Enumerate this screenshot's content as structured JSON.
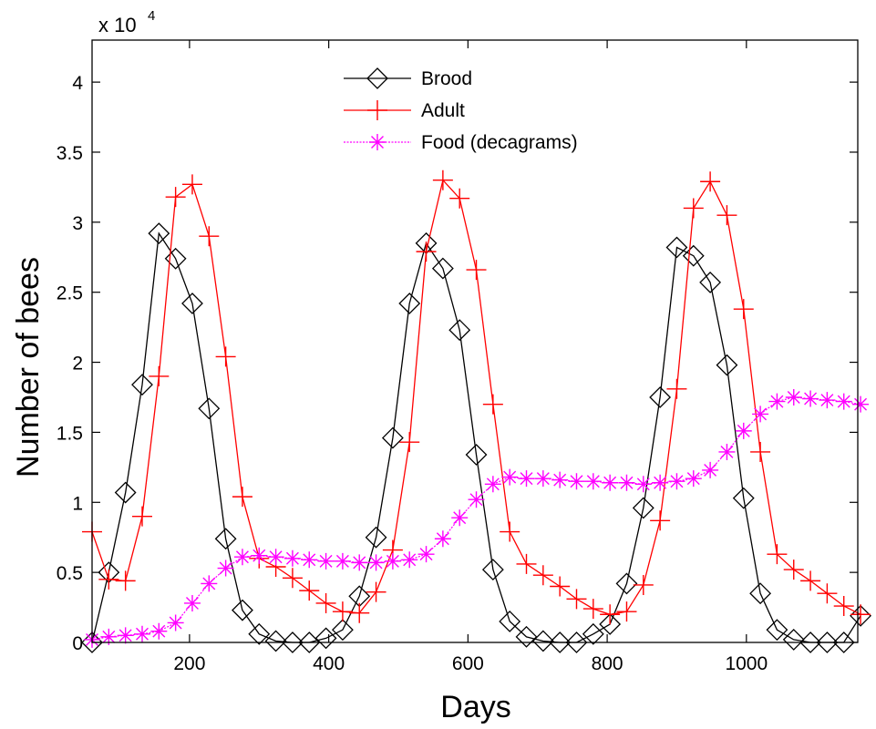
{
  "chart_data": {
    "type": "line",
    "xlabel": "Days",
    "ylabel": "Number of bees",
    "y_exponent": {
      "base": "x 10",
      "power": "4"
    },
    "xlim": [
      60,
      1160
    ],
    "ylim": [
      0,
      43000
    ],
    "x_ticks": [
      200,
      400,
      600,
      800,
      1000
    ],
    "x_tick_labels": [
      "200",
      "400",
      "600",
      "800",
      "1000"
    ],
    "y_ticks": [
      0,
      5000,
      10000,
      15000,
      20000,
      25000,
      30000,
      35000,
      40000
    ],
    "y_tick_labels": [
      "0",
      "0.5",
      "1",
      "1.5",
      "2",
      "2.5",
      "3",
      "3.5",
      "4"
    ],
    "grid": false,
    "legend_position": "top-center",
    "series": [
      {
        "name": "Brood",
        "color": "#000000",
        "marker": "diamond",
        "points": [
          [
            60,
            0
          ],
          [
            84,
            5000
          ],
          [
            108,
            10700
          ],
          [
            132,
            18400
          ],
          [
            156,
            29200
          ],
          [
            180,
            27400
          ],
          [
            204,
            24200
          ],
          [
            228,
            16700
          ],
          [
            252,
            7400
          ],
          [
            276,
            2300
          ],
          [
            300,
            600
          ],
          [
            324,
            100
          ],
          [
            348,
            0
          ],
          [
            372,
            0
          ],
          [
            396,
            300
          ],
          [
            420,
            900
          ],
          [
            444,
            3300
          ],
          [
            468,
            7500
          ],
          [
            492,
            14600
          ],
          [
            516,
            24200
          ],
          [
            540,
            28500
          ],
          [
            564,
            26700
          ],
          [
            588,
            22300
          ],
          [
            612,
            13400
          ],
          [
            636,
            5200
          ],
          [
            660,
            1500
          ],
          [
            684,
            400
          ],
          [
            708,
            100
          ],
          [
            732,
            0
          ],
          [
            756,
            0
          ],
          [
            780,
            600
          ],
          [
            804,
            1300
          ],
          [
            828,
            4200
          ],
          [
            852,
            9600
          ],
          [
            876,
            17500
          ],
          [
            900,
            28200
          ],
          [
            924,
            27600
          ],
          [
            948,
            25700
          ],
          [
            972,
            19800
          ],
          [
            996,
            10300
          ],
          [
            1020,
            3500
          ],
          [
            1044,
            900
          ],
          [
            1068,
            200
          ],
          [
            1092,
            0
          ],
          [
            1116,
            0
          ],
          [
            1140,
            0
          ],
          [
            1164,
            1900
          ]
        ]
      },
      {
        "name": "Adult",
        "color": "#ff0000",
        "marker": "plus",
        "points": [
          [
            60,
            7900
          ],
          [
            84,
            4500
          ],
          [
            108,
            4400
          ],
          [
            132,
            9000
          ],
          [
            156,
            19000
          ],
          [
            180,
            31800
          ],
          [
            204,
            32700
          ],
          [
            228,
            29000
          ],
          [
            252,
            20400
          ],
          [
            276,
            10400
          ],
          [
            300,
            6000
          ],
          [
            324,
            5400
          ],
          [
            348,
            4600
          ],
          [
            372,
            3700
          ],
          [
            396,
            2800
          ],
          [
            420,
            2200
          ],
          [
            444,
            2100
          ],
          [
            468,
            3600
          ],
          [
            492,
            6600
          ],
          [
            516,
            14300
          ],
          [
            540,
            27900
          ],
          [
            564,
            33000
          ],
          [
            588,
            31700
          ],
          [
            612,
            26600
          ],
          [
            636,
            17000
          ],
          [
            660,
            7900
          ],
          [
            684,
            5600
          ],
          [
            708,
            4800
          ],
          [
            732,
            4000
          ],
          [
            756,
            3100
          ],
          [
            780,
            2400
          ],
          [
            804,
            2000
          ],
          [
            828,
            2200
          ],
          [
            852,
            4100
          ],
          [
            876,
            8700
          ],
          [
            900,
            18100
          ],
          [
            924,
            31000
          ],
          [
            948,
            32900
          ],
          [
            972,
            30500
          ],
          [
            996,
            23800
          ],
          [
            1020,
            13600
          ],
          [
            1044,
            6300
          ],
          [
            1068,
            5200
          ],
          [
            1092,
            4400
          ],
          [
            1116,
            3500
          ],
          [
            1140,
            2600
          ],
          [
            1164,
            2000
          ]
        ]
      },
      {
        "name": "Food (decagrams)",
        "color": "#ff00ff",
        "marker": "asterisk",
        "dashed": true,
        "points": [
          [
            60,
            200
          ],
          [
            84,
            400
          ],
          [
            108,
            500
          ],
          [
            132,
            600
          ],
          [
            156,
            800
          ],
          [
            180,
            1400
          ],
          [
            204,
            2800
          ],
          [
            228,
            4200
          ],
          [
            252,
            5300
          ],
          [
            276,
            6100
          ],
          [
            300,
            6200
          ],
          [
            324,
            6100
          ],
          [
            348,
            6000
          ],
          [
            372,
            5900
          ],
          [
            396,
            5800
          ],
          [
            420,
            5800
          ],
          [
            444,
            5700
          ],
          [
            468,
            5700
          ],
          [
            492,
            5800
          ],
          [
            516,
            5900
          ],
          [
            540,
            6300
          ],
          [
            564,
            7400
          ],
          [
            588,
            8900
          ],
          [
            612,
            10200
          ],
          [
            636,
            11300
          ],
          [
            660,
            11800
          ],
          [
            684,
            11700
          ],
          [
            708,
            11700
          ],
          [
            732,
            11600
          ],
          [
            756,
            11500
          ],
          [
            780,
            11500
          ],
          [
            804,
            11400
          ],
          [
            828,
            11400
          ],
          [
            852,
            11300
          ],
          [
            876,
            11400
          ],
          [
            900,
            11500
          ],
          [
            924,
            11700
          ],
          [
            948,
            12300
          ],
          [
            972,
            13600
          ],
          [
            996,
            15100
          ],
          [
            1020,
            16300
          ],
          [
            1044,
            17200
          ],
          [
            1068,
            17500
          ],
          [
            1092,
            17400
          ],
          [
            1116,
            17300
          ],
          [
            1140,
            17200
          ],
          [
            1164,
            17000
          ]
        ]
      }
    ]
  }
}
